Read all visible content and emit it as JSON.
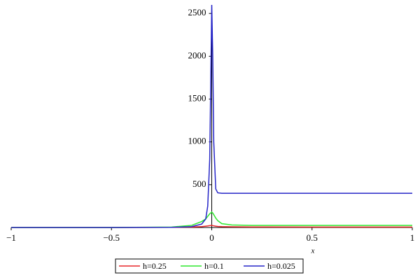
{
  "chart_data": {
    "type": "line",
    "x_label": "x",
    "x": [
      -1,
      -0.5,
      -0.2,
      -0.1,
      -0.05,
      -0.03,
      -0.02,
      -0.01,
      0,
      0.005,
      0.01,
      0.02,
      0.03,
      0.05,
      0.1,
      0.2,
      0.5,
      1
    ],
    "series": [
      {
        "name": "h=0.25",
        "color": "#e8262a",
        "values": [
          0,
          0,
          2,
          5,
          10,
          15,
          18,
          22,
          25,
          22,
          20,
          15,
          12,
          10,
          8,
          6,
          5,
          5
        ]
      },
      {
        "name": "h=0.1",
        "color": "#2ee82e",
        "values": [
          0,
          0,
          5,
          25,
          70,
          100,
          130,
          160,
          180,
          170,
          150,
          110,
          80,
          45,
          30,
          25,
          25,
          25
        ]
      },
      {
        "name": "h=0.025",
        "color": "#2626c8",
        "values": [
          0,
          0,
          2,
          10,
          40,
          100,
          250,
          800,
          2600,
          2000,
          1000,
          450,
          405,
          400,
          400,
          400,
          400,
          400
        ]
      }
    ],
    "xlim": [
      -1,
      1
    ],
    "xticks": [
      {
        "value": -1,
        "label": "−1"
      },
      {
        "value": -0.5,
        "label": "−0.5"
      },
      0,
      0.5,
      1
    ],
    "ylim": [
      0,
      2600
    ],
    "yticks": [
      500,
      1000,
      1500,
      2000,
      2500
    ],
    "legend": "bottom"
  }
}
